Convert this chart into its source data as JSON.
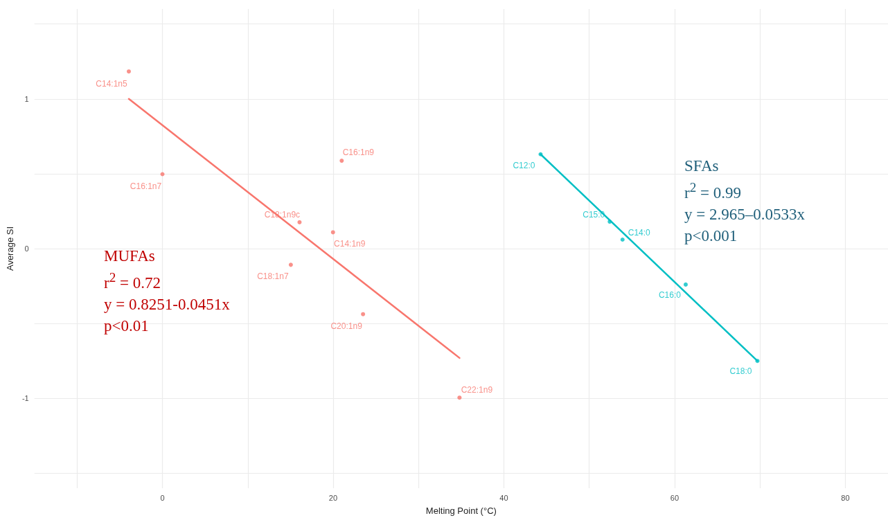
{
  "chart_data": {
    "type": "scatter",
    "xlabel": "Melting Point (°C)",
    "ylabel": "Average SI",
    "xlim": [
      -15,
      85
    ],
    "xticks": [
      {
        "value": -10,
        "label": null
      },
      0,
      {
        "value": 10,
        "label": null
      },
      20,
      {
        "value": 30,
        "label": null
      },
      40,
      {
        "value": 50,
        "label": null
      },
      60,
      {
        "value": 70,
        "label": null
      },
      80
    ],
    "ylim": [
      -1.6,
      1.6
    ],
    "yticks": [
      {
        "value": -1.5,
        "label": null
      },
      -1,
      {
        "value": -0.5,
        "label": null
      },
      0,
      {
        "value": 0.5,
        "label": null
      },
      1,
      {
        "value": 1.5,
        "label": null
      }
    ],
    "grid": true,
    "marker": "circle",
    "series": [
      {
        "color": "#f8766d",
        "x": [
          -3.94,
          0,
          21.0,
          16.06,
          19.98,
          15.04,
          23.5,
          34.8
        ],
        "values": [
          1.183,
          0.497,
          0.587,
          0.176,
          0.109,
          -0.108,
          -0.438,
          -0.995
        ]
      },
      {
        "type": "line",
        "color": "#f8766d",
        "marker": "none",
        "x": [
          -3.94,
          34.8
        ],
        "values": [
          1.0,
          -0.73
        ]
      },
      {
        "color": "#00bfc4",
        "x": [
          44.3,
          52.4,
          53.9,
          61.3,
          69.7
        ],
        "values": [
          0.63,
          0.18,
          0.06,
          -0.24,
          -0.75
        ]
      },
      {
        "type": "line",
        "color": "#00bfc4",
        "marker": "none",
        "x": [
          44.3,
          69.7
        ],
        "values": [
          0.63,
          -0.75
        ]
      }
    ],
    "annotations": [
      {
        "text": "C14:1n5",
        "x": -3.94,
        "y": 1.183
      },
      {
        "text": "C16:1n7",
        "x": 0,
        "y": 0.497
      },
      {
        "text": "C16:1n9",
        "x": 21.0,
        "y": 0.587
      },
      {
        "text": "C18:1n9c",
        "x": 16.06,
        "y": 0.176
      },
      {
        "text": "C14:1n9",
        "x": 19.98,
        "y": 0.109
      },
      {
        "text": "C18:1n7",
        "x": 15.04,
        "y": -0.108
      },
      {
        "text": "C20:1n9",
        "x": 23.5,
        "y": -0.438
      },
      {
        "text": "C22:1n9",
        "x": 34.8,
        "y": -0.995
      },
      {
        "text": "C12:0",
        "x": 44.3,
        "y": 0.63
      },
      {
        "text": "C15:0",
        "x": 52.4,
        "y": 0.18
      },
      {
        "text": "C14:0",
        "x": 53.9,
        "y": 0.06
      },
      {
        "text": "C16:0",
        "x": 61.3,
        "y": -0.24
      },
      {
        "text": "C18:0",
        "x": 69.7,
        "y": -0.75
      },
      "MUFAs\nr$^{2}$ = 0.72\ny = 0.8251-0.0451x\np<0.01",
      "SFAs\nr$^{2}$ = 0.99\ny = 2.965–0.0533x\np<0.001"
    ]
  }
}
